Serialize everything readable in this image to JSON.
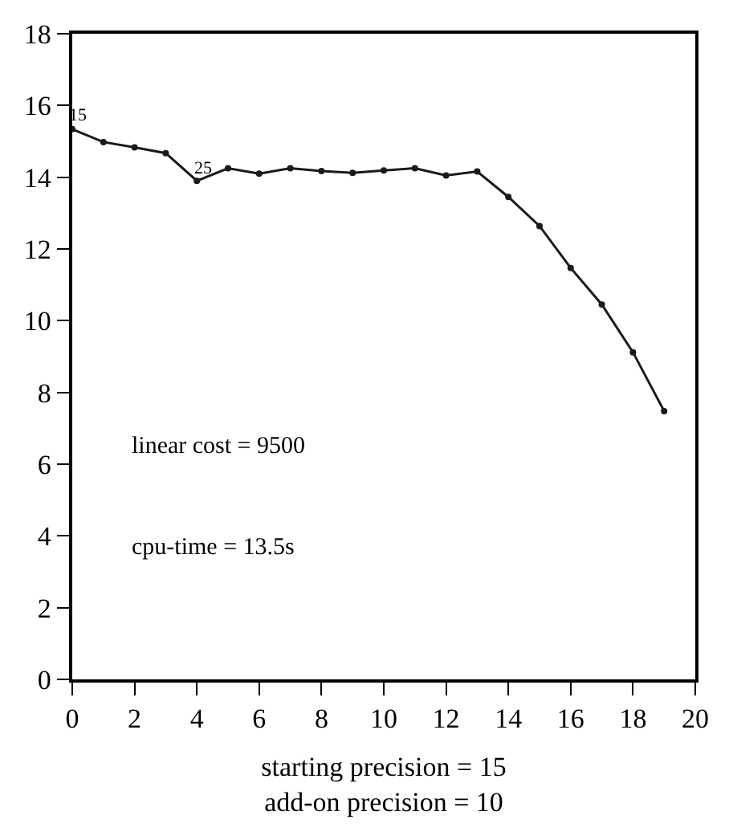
{
  "chart_data": {
    "type": "line",
    "x": [
      0,
      1,
      2,
      3,
      4,
      5,
      6,
      7,
      8,
      9,
      10,
      11,
      12,
      13,
      14,
      15,
      16,
      17,
      18,
      19
    ],
    "series": [
      {
        "color": "#1a1a1a",
        "values": [
          15.34,
          14.98,
          14.83,
          14.67,
          13.9,
          14.25,
          14.1,
          14.25,
          14.17,
          14.12,
          14.19,
          14.25,
          14.05,
          14.16,
          13.45,
          12.64,
          11.47,
          10.45,
          9.12,
          7.48
        ]
      }
    ],
    "xlim": [
      0,
      20
    ],
    "ylim": [
      0,
      18
    ],
    "xticks": [
      0,
      2,
      4,
      6,
      8,
      10,
      12,
      14,
      16,
      18,
      20
    ],
    "yticks": [
      0,
      2,
      4,
      6,
      8,
      10,
      12,
      14,
      16,
      18
    ],
    "xlabel": "starting precision = 15\nadd-on precision = 10",
    "annotations": [
      {
        "text": "15",
        "x": 0,
        "y": 15.34
      },
      {
        "text": "25",
        "x": 4,
        "y": 13.9
      },
      "linear cost = 9500",
      "cpu-time = 13.5s"
    ],
    "marker": "circle",
    "line_style": "solid"
  }
}
